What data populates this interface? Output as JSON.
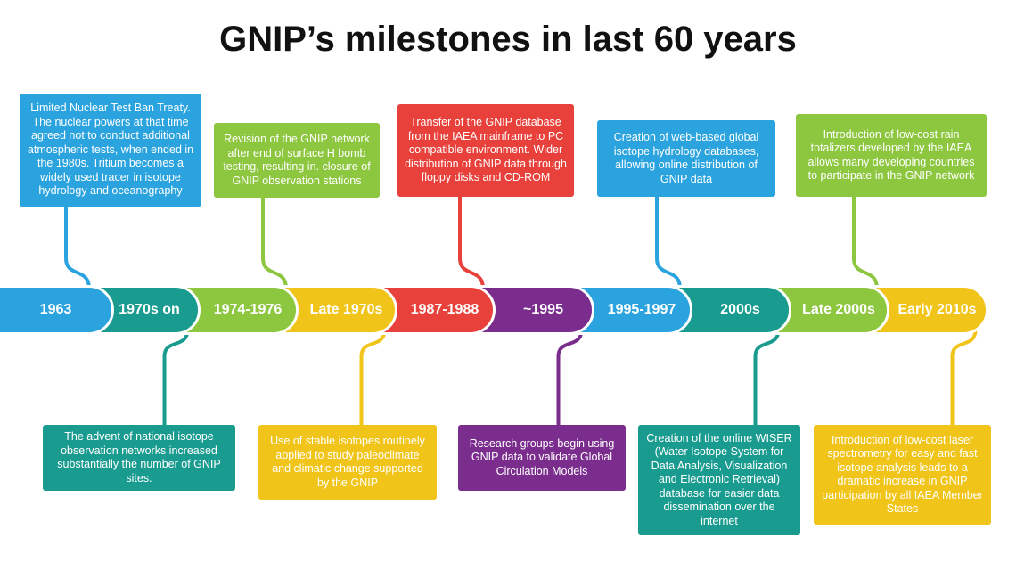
{
  "title": "GNIP’s milestones in last 60 years",
  "milestones": [
    {
      "label": "1963",
      "description": "Limited Nuclear Test Ban Treaty. The nuclear powers at that time agreed not to conduct additional atmospheric tests, when ended in the 1980s. Tritium becomes a widely used tracer in isotope hydrology and oceanography"
    },
    {
      "label": "1970s on",
      "description": "The advent of national isotope observation networks increased substantially the number of GNIP sites."
    },
    {
      "label": "1974-1976",
      "description": "Revision of the GNIP network after end of surface H bomb testing, resulting in. closure of  GNIP observation stations"
    },
    {
      "label": "Late 1970s",
      "description": "Use of stable isotopes routinely applied to study paleoclimate and climatic change supported by the GNIP"
    },
    {
      "label": "1987-1988",
      "description": "Transfer of the GNIP database from the IAEA mainframe to PC compatible environment. Wider distribution of GNIP data through floppy disks and CD-ROM"
    },
    {
      "label": "~1995",
      "description": "Research groups begin using GNIP data to validate Global Circulation Models"
    },
    {
      "label": "1995-1997",
      "description": "Creation of web-based global isotope hydrology databases, allowing online distribution of GNIP data"
    },
    {
      "label": "2000s",
      "description": "Creation of the online WISER (Water Isotope System for Data Analysis, Visualization and Electronic Retrieval) database for easier data dissemination over the internet"
    },
    {
      "label": "Late 2000s",
      "description": "Introduction of low-cost rain totalizers developed by the IAEA allows many developing countries to participate in the GNIP network"
    },
    {
      "label": "Early 2010s",
      "description": "Introduction of low-cost laser spectrometry for easy and fast isotope analysis leads to a dramatic increase in GNIP participation by all IAEA Member States"
    }
  ]
}
